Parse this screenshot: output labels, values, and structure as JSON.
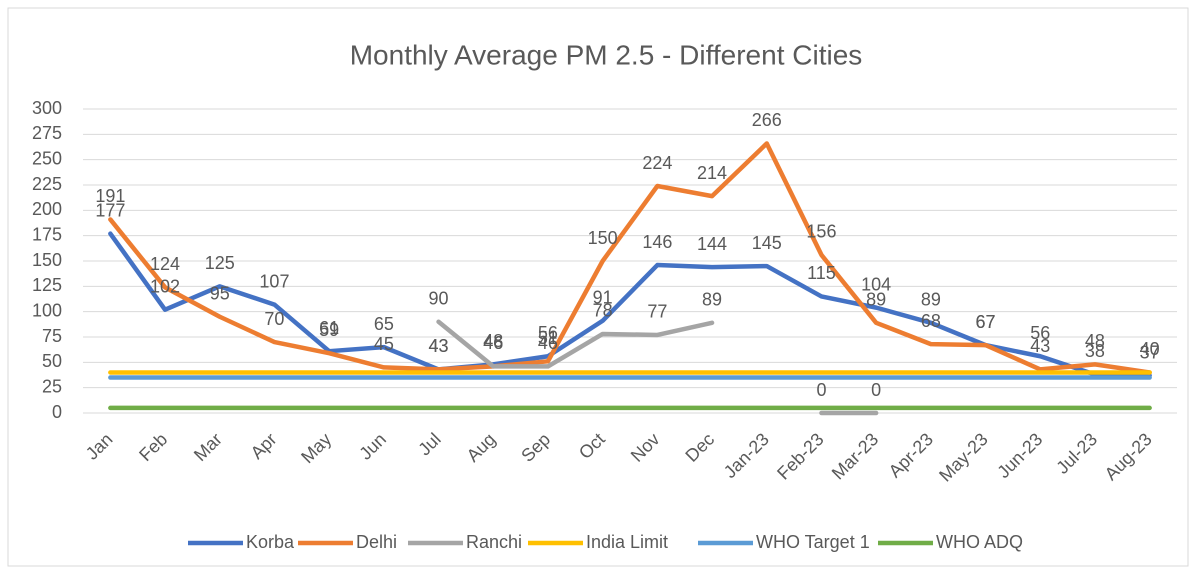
{
  "chart_data": {
    "type": "line",
    "title": "Monthly Average PM 2.5 - Different Cities",
    "categories": [
      "Jan",
      "Feb",
      "Mar",
      "Apr",
      "May",
      "Jun",
      "Jul",
      "Aug",
      "Sep",
      "Oct",
      "Nov",
      "Dec",
      "Jan-23",
      "Feb-23",
      "Mar-23",
      "Apr-23",
      "May-23",
      "Jun-23",
      "Jul-23",
      "Aug-23"
    ],
    "ylim": [
      0,
      300
    ],
    "yticks": [
      0,
      25,
      50,
      75,
      100,
      125,
      150,
      175,
      200,
      225,
      250,
      275,
      300
    ],
    "grid": true,
    "legend": "bottom",
    "series": [
      {
        "name": "Korba",
        "color": "#4472c4",
        "data_labels": true,
        "values": [
          177,
          102,
          125,
          107,
          61,
          65,
          43,
          48,
          56,
          91,
          146,
          144,
          145,
          115,
          104,
          89,
          67,
          56,
          38,
          37
        ]
      },
      {
        "name": "Delhi",
        "color": "#ed7d31",
        "data_labels": true,
        "values": [
          191,
          124,
          95,
          70,
          59,
          45,
          43,
          46,
          51,
          150,
          224,
          214,
          266,
          156,
          89,
          68,
          67,
          43,
          48,
          40
        ]
      },
      {
        "name": "Ranchi",
        "color": "#a5a5a5",
        "data_labels": true,
        "values": [
          null,
          null,
          null,
          null,
          null,
          null,
          90,
          46,
          46,
          78,
          77,
          89,
          null,
          0,
          0,
          null,
          null,
          null,
          null,
          null
        ]
      },
      {
        "name": "India Limit",
        "color": "#ffc000",
        "data_labels": false,
        "values": [
          40,
          40,
          40,
          40,
          40,
          40,
          40,
          40,
          40,
          40,
          40,
          40,
          40,
          40,
          40,
          40,
          40,
          40,
          40,
          40
        ]
      },
      {
        "name": "WHO Target 1",
        "color": "#5b9bd5",
        "data_labels": false,
        "values": [
          35,
          35,
          35,
          35,
          35,
          35,
          35,
          35,
          35,
          35,
          35,
          35,
          35,
          35,
          35,
          35,
          35,
          35,
          35,
          35
        ]
      },
      {
        "name": "WHO ADQ",
        "color": "#70ad47",
        "data_labels": false,
        "values": [
          5,
          5,
          5,
          5,
          5,
          5,
          5,
          5,
          5,
          5,
          5,
          5,
          5,
          5,
          5,
          5,
          5,
          5,
          5,
          5
        ]
      }
    ]
  }
}
